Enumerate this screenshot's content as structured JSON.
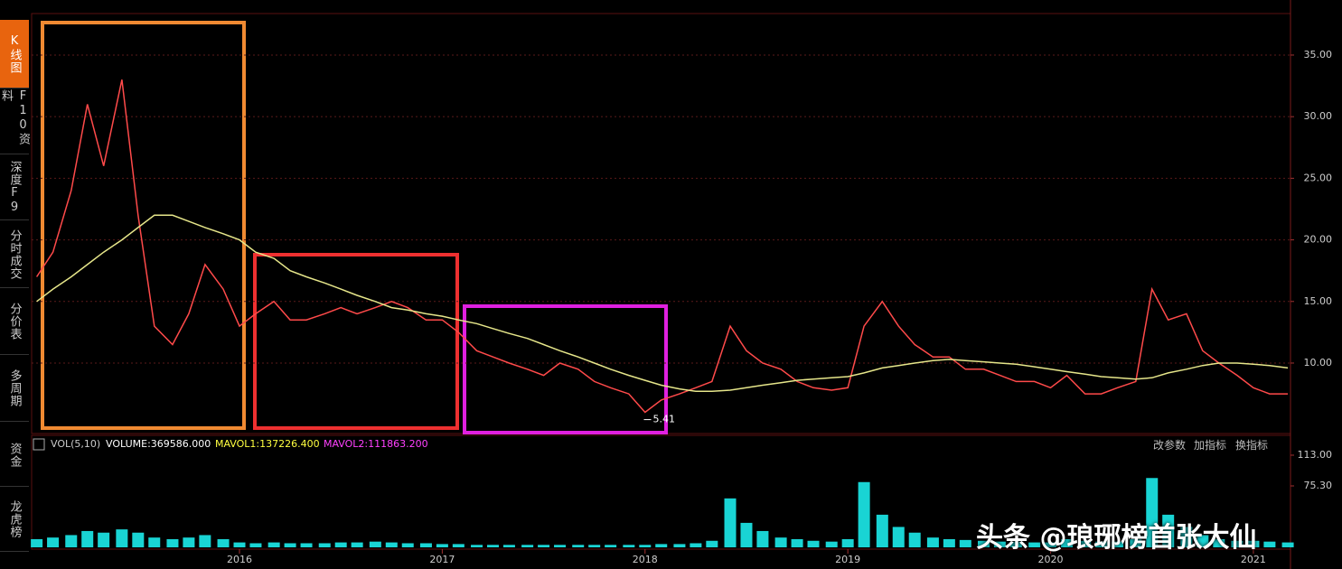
{
  "sidebar": {
    "tabs": [
      "K线图",
      "F10资料",
      "深度F9",
      "分时成交",
      "分价表",
      "多周期",
      "资金",
      "龙虎榜"
    ]
  },
  "toolbar": {
    "buttons": [
      "改参数",
      "加指标",
      "换指标"
    ]
  },
  "watermark": "头条 @琅琊榜首张大仙",
  "chart_data": [
    {
      "type": "line",
      "x": [
        2015.0,
        2015.08,
        2015.17,
        2015.25,
        2015.33,
        2015.42,
        2015.5,
        2015.58,
        2015.67,
        2015.75,
        2015.83,
        2015.92,
        2016.0,
        2016.08,
        2016.17,
        2016.25,
        2016.33,
        2016.42,
        2016.5,
        2016.58,
        2016.67,
        2016.75,
        2016.83,
        2016.92,
        2017.0,
        2017.08,
        2017.17,
        2017.25,
        2017.33,
        2017.42,
        2017.5,
        2017.58,
        2017.67,
        2017.75,
        2017.83,
        2017.92,
        2018.0,
        2018.08,
        2018.17,
        2018.25,
        2018.33,
        2018.42,
        2018.5,
        2018.58,
        2018.67,
        2018.75,
        2018.83,
        2018.92,
        2019.0,
        2019.08,
        2019.17,
        2019.25,
        2019.33,
        2019.42,
        2019.5,
        2019.58,
        2019.67,
        2019.75,
        2019.83,
        2019.92,
        2020.0,
        2020.08,
        2020.17,
        2020.25,
        2020.33,
        2020.42,
        2020.5,
        2020.58,
        2020.67,
        2020.75,
        2020.83,
        2020.92,
        2021.0,
        2021.08,
        2021.17
      ],
      "series": [
        {
          "color": "#ff4a4a",
          "values": [
            17,
            19,
            24,
            31,
            26,
            33,
            22,
            13,
            11.5,
            14,
            18,
            16,
            13,
            14,
            15,
            13.5,
            13.5,
            14,
            14.5,
            14,
            14.5,
            15,
            14.5,
            13.5,
            13.5,
            12.5,
            11,
            10.5,
            10,
            9.5,
            9,
            10,
            9.5,
            8.5,
            8,
            7.5,
            6,
            7,
            7.5,
            8,
            8.5,
            13,
            11,
            10,
            9.5,
            8.5,
            8,
            7.8,
            8,
            13,
            15,
            13,
            11.5,
            10.5,
            10.5,
            9.5,
            9.5,
            9,
            8.5,
            8.5,
            8,
            9,
            7.5,
            7.5,
            8,
            8.5,
            16,
            13.5,
            14,
            11,
            10,
            9,
            8,
            7.5,
            7.5
          ]
        },
        {
          "color": "#e6e68a",
          "values": [
            15,
            16,
            17,
            18,
            19,
            20,
            21,
            22,
            22,
            21.5,
            21,
            20.5,
            20,
            19,
            18.5,
            17.5,
            17,
            16.5,
            16,
            15.5,
            15,
            14.5,
            14.3,
            14,
            13.8,
            13.5,
            13.2,
            12.8,
            12.4,
            12,
            11.5,
            11,
            10.5,
            10,
            9.5,
            9,
            8.6,
            8.2,
            7.9,
            7.7,
            7.7,
            7.8,
            8,
            8.2,
            8.4,
            8.6,
            8.7,
            8.8,
            8.9,
            9.2,
            9.6,
            9.8,
            10,
            10.2,
            10.3,
            10.2,
            10.1,
            10,
            9.9,
            9.7,
            9.5,
            9.3,
            9.1,
            8.9,
            8.8,
            8.7,
            8.8,
            9.2,
            9.5,
            9.8,
            10,
            10,
            9.9,
            9.8,
            9.6
          ]
        }
      ],
      "annotations": [
        {
          "x": 2018.03,
          "value": 5.41
        }
      ],
      "xlim": [
        2014.975,
        2021.183
      ],
      "xticks": [
        2016,
        2017,
        2018,
        2019,
        2020,
        2021
      ],
      "ylim": [
        4.28,
        38.37
      ],
      "yticks": [
        {
          "value": 10,
          "label": "10.00"
        },
        {
          "value": 15,
          "label": "15.00"
        },
        {
          "value": 20,
          "label": "20.00"
        },
        {
          "value": 25,
          "label": "25.00"
        },
        {
          "value": 30,
          "label": "30.00"
        },
        {
          "value": 35,
          "label": "35.00"
        }
      ],
      "grid": true
    },
    {
      "type": "bar",
      "indicator": {
        "name": "VOL(5,10)",
        "volume": "VOLUME:369586.000",
        "mavol1": "MAVOL1:137226.400",
        "mavol2": "MAVOL2:111863.200"
      },
      "x": [
        2015.0,
        2015.08,
        2015.17,
        2015.25,
        2015.33,
        2015.42,
        2015.5,
        2015.58,
        2015.67,
        2015.75,
        2015.83,
        2015.92,
        2016.0,
        2016.08,
        2016.17,
        2016.25,
        2016.33,
        2016.42,
        2016.5,
        2016.58,
        2016.67,
        2016.75,
        2016.83,
        2016.92,
        2017.0,
        2017.08,
        2017.17,
        2017.25,
        2017.33,
        2017.42,
        2017.5,
        2017.58,
        2017.67,
        2017.75,
        2017.83,
        2017.92,
        2018.0,
        2018.08,
        2018.17,
        2018.25,
        2018.33,
        2018.42,
        2018.5,
        2018.58,
        2018.67,
        2018.75,
        2018.83,
        2018.92,
        2019.0,
        2019.08,
        2019.17,
        2019.25,
        2019.33,
        2019.42,
        2019.5,
        2019.58,
        2019.67,
        2019.75,
        2019.83,
        2019.92,
        2020.0,
        2020.08,
        2020.17,
        2020.25,
        2020.33,
        2020.42,
        2020.5,
        2020.58,
        2020.67,
        2020.75,
        2020.83,
        2020.92,
        2021.0,
        2021.08,
        2021.17
      ],
      "series": [
        {
          "color": "#19d4d4",
          "values": [
            10,
            12,
            15,
            20,
            18,
            22,
            18,
            12,
            10,
            12,
            15,
            10,
            6,
            5,
            6,
            5,
            5,
            5,
            6,
            6,
            7,
            6,
            5,
            5,
            4,
            4,
            3,
            3,
            3,
            3,
            3,
            3,
            3,
            3,
            3,
            3,
            3,
            4,
            4,
            5,
            8,
            60,
            30,
            20,
            12,
            10,
            8,
            7,
            10,
            80,
            40,
            25,
            18,
            12,
            10,
            9,
            8,
            7,
            7,
            6,
            6,
            10,
            8,
            7,
            7,
            10,
            85,
            40,
            25,
            15,
            10,
            8,
            8,
            7,
            6
          ]
        }
      ],
      "xlim": [
        2014.975,
        2021.183
      ],
      "ylim": [
        0,
        117.4
      ],
      "yticks": [
        {
          "value": 75.3,
          "label": "75.30"
        },
        {
          "value": 113,
          "label": "113.00"
        }
      ]
    }
  ]
}
